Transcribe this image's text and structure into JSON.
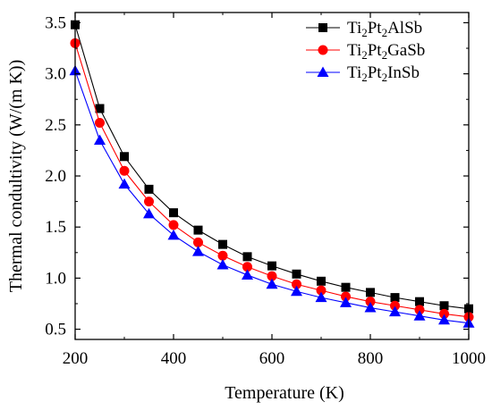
{
  "chart_data": {
    "type": "line",
    "title": "",
    "xlabel": "Temperature (K)",
    "ylabel": "Thermal condultivity (W/(m K))",
    "xlim": [
      200,
      1000
    ],
    "ylim": [
      0.4,
      3.6
    ],
    "xticks": [
      200,
      400,
      600,
      800,
      1000
    ],
    "xtick_labels": [
      "200",
      "400",
      "600",
      "800",
      "1000"
    ],
    "yticks": [
      0.5,
      1.0,
      1.5,
      2.0,
      2.5,
      3.0,
      3.5
    ],
    "ytick_labels": [
      "0.5",
      "1.0",
      "1.5",
      "2.0",
      "2.5",
      "3.0",
      "3.5"
    ],
    "grid": false,
    "legend_position": "top-right",
    "x": [
      200,
      250,
      300,
      350,
      400,
      450,
      500,
      550,
      600,
      650,
      700,
      750,
      800,
      850,
      900,
      950,
      1000
    ],
    "series": [
      {
        "base": "Ti",
        "sub1": "2",
        "mid": "Pt",
        "sub2": "2",
        "tail": "AlSb",
        "marker": "square",
        "color": "#000000",
        "values": [
          3.48,
          2.66,
          2.19,
          1.87,
          1.64,
          1.47,
          1.33,
          1.21,
          1.12,
          1.04,
          0.97,
          0.91,
          0.86,
          0.81,
          0.77,
          0.73,
          0.7
        ]
      },
      {
        "base": "Ti",
        "sub1": "2",
        "mid": "Pt",
        "sub2": "2",
        "tail": "GaSb",
        "marker": "circle",
        "color": "#ff0000",
        "values": [
          3.3,
          2.52,
          2.05,
          1.75,
          1.52,
          1.35,
          1.22,
          1.11,
          1.02,
          0.94,
          0.88,
          0.82,
          0.77,
          0.73,
          0.69,
          0.65,
          0.62
        ]
      },
      {
        "base": "Ti",
        "sub1": "2",
        "mid": "Pt",
        "sub2": "2",
        "tail": "InSb",
        "marker": "triangle",
        "color": "#0000ff",
        "values": [
          3.03,
          2.35,
          1.92,
          1.63,
          1.42,
          1.26,
          1.13,
          1.03,
          0.94,
          0.87,
          0.81,
          0.76,
          0.71,
          0.67,
          0.63,
          0.59,
          0.56
        ]
      }
    ]
  }
}
